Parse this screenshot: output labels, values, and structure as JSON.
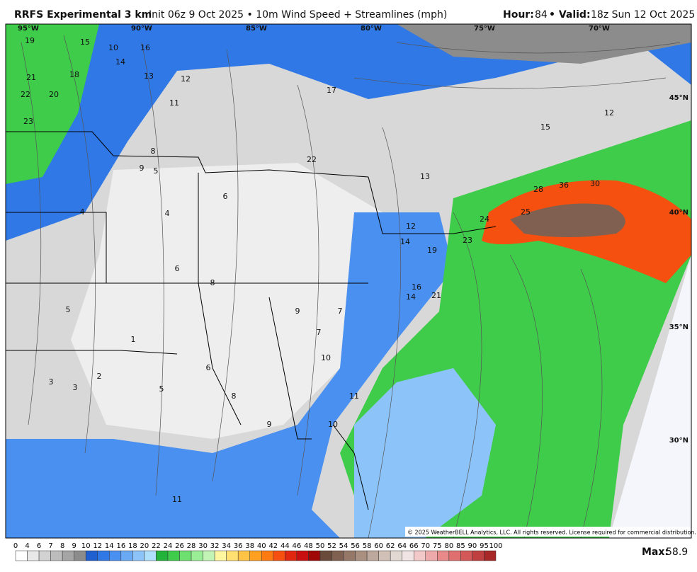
{
  "header": {
    "title": "RRFS Experimental 3 km",
    "subtitle": "Init 06z 9 Oct 2025 • 10m Wind Speed + Streamlines (mph)",
    "hour_label": "Hour:",
    "hour": "84",
    "valid_label": "• Valid:",
    "valid": "18z Sun 12 Oct 2025"
  },
  "longitudes": [
    "95°W",
    "90°W",
    "85°W",
    "80°W",
    "75°W",
    "70°W"
  ],
  "latitudes": [
    "45°N",
    "40°N",
    "35°N",
    "30°N"
  ],
  "map_labels": [
    19,
    15,
    10,
    14,
    18,
    16,
    21,
    22,
    23,
    20,
    17,
    11,
    12,
    13,
    9,
    8,
    5,
    6,
    4,
    3,
    2,
    7,
    1,
    5,
    6,
    8,
    9,
    10,
    11,
    12,
    14,
    16,
    19,
    21,
    24,
    23,
    25,
    28,
    30,
    36,
    22,
    14,
    15,
    12,
    10,
    13,
    9,
    7,
    6,
    5,
    4,
    3,
    8,
    11
  ],
  "colorbar": {
    "ticks": [
      0,
      4,
      6,
      7,
      8,
      9,
      10,
      12,
      14,
      16,
      18,
      20,
      22,
      24,
      26,
      28,
      30,
      32,
      34,
      36,
      38,
      40,
      42,
      44,
      46,
      48,
      50,
      52,
      54,
      56,
      58,
      60,
      62,
      64,
      66,
      70,
      75,
      80,
      85,
      90,
      95,
      100
    ],
    "colors": [
      "#ffffff",
      "#e8e8e8",
      "#d2d2d2",
      "#bcbcbc",
      "#a5a5a5",
      "#8c8c8c",
      "#1f5fd0",
      "#2f78e6",
      "#4a90f0",
      "#6aaaf5",
      "#8cc4fa",
      "#aee0fb",
      "#22b33a",
      "#3fcc4a",
      "#6ee070",
      "#9aee95",
      "#c2f5b5",
      "#fff6a0",
      "#ffe070",
      "#ffc445",
      "#ffa020",
      "#ff7a10",
      "#f55010",
      "#e02810",
      "#c81010",
      "#a00808",
      "#6a4a3a",
      "#806050",
      "#957868",
      "#a99080",
      "#bca89c",
      "#d0c0b6",
      "#e2d8d2",
      "#f0e4e4",
      "#f2c8c8",
      "#eeaaaa",
      "#e88a8a",
      "#e07070",
      "#d45858",
      "#c04040",
      "#a82828"
    ]
  },
  "max_label": "Max:",
  "max_value": "58.9",
  "copyright": "© 2025 WeatherBELL Analytics, LLC. All rights reserved. License required for commercial distribution."
}
